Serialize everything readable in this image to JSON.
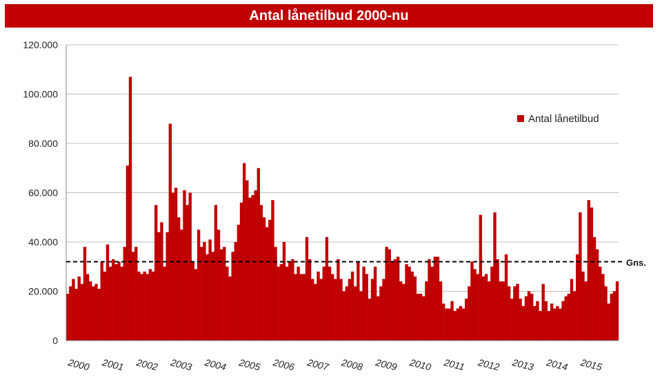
{
  "chart_data": {
    "type": "bar",
    "title": "Antal lånetilbud 2000-nu",
    "xlabel": "",
    "ylabel": "",
    "ylim": [
      0,
      120000
    ],
    "y_ticks": [
      "0",
      "20.000",
      "40.000",
      "60.000",
      "80.000",
      "100.000",
      "120.000"
    ],
    "x_ticks": [
      "2000",
      "2001",
      "2002",
      "2003",
      "2004",
      "2005",
      "2006",
      "2007",
      "2008",
      "2009",
      "2010",
      "2011",
      "2012",
      "2013",
      "2014",
      "2015"
    ],
    "grid": true,
    "legend_position": "right",
    "bar_color": "#c00000",
    "series": [
      {
        "name": "Antal lånetilbud",
        "values": [
          19000,
          22000,
          25000,
          21000,
          26000,
          23000,
          38000,
          27000,
          24000,
          22000,
          23000,
          21000,
          32000,
          28000,
          39000,
          30000,
          33000,
          31000,
          32000,
          30000,
          38000,
          71000,
          107000,
          36000,
          38000,
          28000,
          27000,
          28000,
          27000,
          29000,
          28000,
          55000,
          44000,
          48000,
          30000,
          44000,
          88000,
          60000,
          62000,
          50000,
          45000,
          61000,
          55000,
          60000,
          32000,
          29000,
          45000,
          38000,
          40000,
          35000,
          41000,
          36000,
          55000,
          45000,
          37000,
          38000,
          30000,
          26000,
          36000,
          40000,
          47000,
          56000,
          72000,
          65000,
          58000,
          59000,
          61000,
          70000,
          55000,
          50000,
          46000,
          49000,
          57000,
          38000,
          30000,
          31000,
          40000,
          30000,
          32000,
          33000,
          27000,
          30000,
          27000,
          27000,
          42000,
          33000,
          25000,
          23000,
          28000,
          25000,
          30000,
          42000,
          30000,
          27000,
          25000,
          33000,
          25000,
          20000,
          22000,
          25000,
          28000,
          22000,
          32000,
          20000,
          30000,
          27000,
          17000,
          25000,
          30000,
          18000,
          22000,
          25000,
          38000,
          37000,
          32000,
          33000,
          34000,
          24000,
          23000,
          31000,
          30000,
          28000,
          26000,
          19000,
          19000,
          18000,
          24000,
          33000,
          30000,
          34000,
          34000,
          24000,
          15000,
          13000,
          13000,
          16000,
          12000,
          13000,
          14000,
          13000,
          17000,
          22000,
          32000,
          29000,
          27000,
          51000,
          26000,
          27000,
          24000,
          30000,
          52000,
          33000,
          24000,
          24000,
          35000,
          22000,
          17000,
          22000,
          23000,
          17000,
          14000,
          18000,
          20000,
          19000,
          14000,
          16000,
          12000,
          23000,
          16000,
          12000,
          15000,
          13000,
          14000,
          13000,
          16000,
          18000,
          19000,
          25000,
          20000,
          35000,
          52000,
          28000,
          24000,
          57000,
          54000,
          42000,
          37000,
          30000,
          27000,
          22000,
          15000,
          19000,
          20000,
          24000
        ]
      },
      {
        "name": "Gns.",
        "values": [
          32000
        ]
      }
    ],
    "average_label": "Gns.",
    "average_value": 32000
  }
}
